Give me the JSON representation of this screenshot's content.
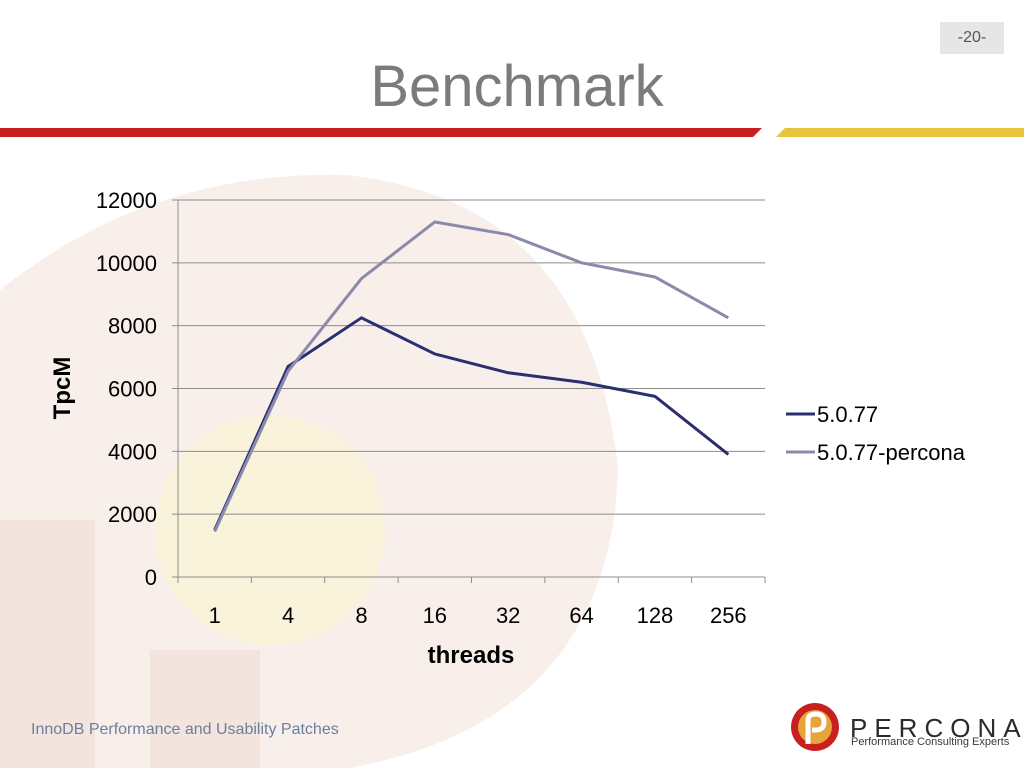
{
  "slide": {
    "title": "Benchmark",
    "page_number": "-20-",
    "footer": "InnoDB Performance and Usability Patches",
    "logo_text": "PERCONA",
    "logo_tagline": "Performance Consulting Experts"
  },
  "colors": {
    "red_bar": "#c8201f",
    "yellow_bar": "#e6c53b",
    "series_dark": "#2b2f72",
    "series_light": "#8a8aab"
  },
  "chart_data": {
    "type": "line",
    "title": "",
    "xlabel": "threads",
    "ylabel": "TpcM",
    "categories": [
      "1",
      "4",
      "8",
      "16",
      "32",
      "64",
      "128",
      "256"
    ],
    "ylim": [
      0,
      12000
    ],
    "yticks": [
      0,
      2000,
      4000,
      6000,
      8000,
      10000,
      12000
    ],
    "grid": true,
    "legend_position": "right",
    "series": [
      {
        "name": "5.0.77",
        "color": "#2b2f72",
        "values": [
          1500,
          6700,
          8250,
          7100,
          6500,
          6200,
          5750,
          3900
        ]
      },
      {
        "name": "5.0.77-percona",
        "color": "#8a8aab",
        "values": [
          1450,
          6550,
          9500,
          11300,
          10900,
          10000,
          9550,
          8250
        ]
      }
    ]
  }
}
